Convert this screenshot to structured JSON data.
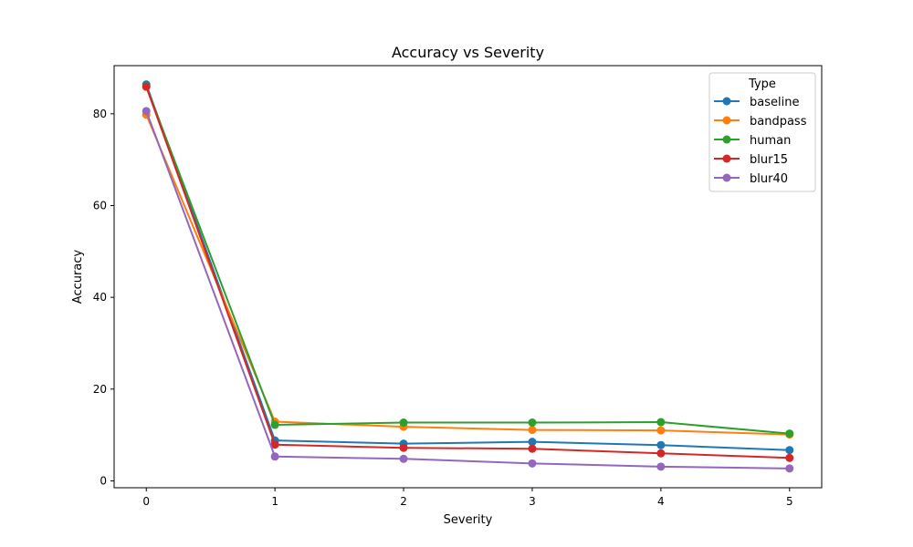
{
  "chart_data": {
    "type": "line",
    "title": "Accuracy vs Severity",
    "xlabel": "Severity",
    "ylabel": "Accuracy",
    "x": [
      0,
      1,
      2,
      3,
      4,
      5
    ],
    "xlim": [
      -0.25,
      5.25
    ],
    "ylim": [
      -1.5,
      90.5
    ],
    "xticks": [
      "0",
      "1",
      "2",
      "3",
      "4",
      "5"
    ],
    "yticks": [
      0,
      20,
      40,
      60,
      80
    ],
    "ytick_labels": [
      "0",
      "20",
      "40",
      "60",
      "80"
    ],
    "grid": false,
    "legend": {
      "title": "Type",
      "placement": "top-right"
    },
    "series": [
      {
        "name": "baseline",
        "color": "#1f77b4",
        "values": [
          86.4,
          8.8,
          8.1,
          8.5,
          7.8,
          6.7
        ]
      },
      {
        "name": "bandpass",
        "color": "#ff7f0e",
        "values": [
          79.8,
          12.9,
          11.8,
          11.1,
          11.0,
          10.1
        ]
      },
      {
        "name": "human",
        "color": "#2ca02c",
        "values": [
          86.0,
          12.2,
          12.7,
          12.7,
          12.8,
          10.3
        ]
      },
      {
        "name": "blur15",
        "color": "#d62728",
        "values": [
          85.9,
          7.9,
          7.2,
          7.0,
          6.0,
          5.0
        ]
      },
      {
        "name": "blur40",
        "color": "#9467bd",
        "values": [
          80.6,
          5.3,
          4.8,
          3.8,
          3.1,
          2.7
        ]
      }
    ]
  }
}
